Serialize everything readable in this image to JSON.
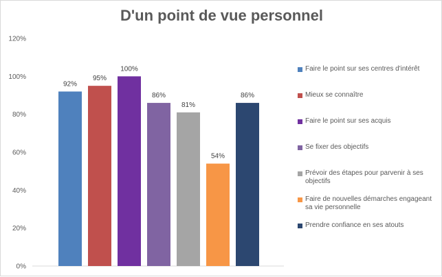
{
  "chart_data": {
    "type": "bar",
    "title": "D'un point de vue personnel",
    "ylim": [
      0,
      120
    ],
    "yticks": [
      {
        "value": 0,
        "label": "0%"
      },
      {
        "value": 20,
        "label": "20%"
      },
      {
        "value": 40,
        "label": "40%"
      },
      {
        "value": 60,
        "label": "60%"
      },
      {
        "value": 80,
        "label": "80%"
      },
      {
        "value": 100,
        "label": "100%"
      },
      {
        "value": 120,
        "label": "120%"
      }
    ],
    "grid": false,
    "legend_position": "right",
    "series": [
      {
        "name": "Faire le point sur ses centres d'intérêt",
        "value": 92,
        "label": "92%",
        "color": "#4F81BD"
      },
      {
        "name": "Mieux se connaître",
        "value": 95,
        "label": "95%",
        "color": "#C0504D"
      },
      {
        "name": "Faire le point sur ses acquis",
        "value": 100,
        "label": "100%",
        "color": "#7030A0"
      },
      {
        "name": "Se fixer des objectifs",
        "value": 86,
        "label": "86%",
        "color": "#8064A2"
      },
      {
        "name": "Prévoir des étapes pour parvenir à ses objectifs",
        "value": 81,
        "label": "81%",
        "color": "#A5A5A5"
      },
      {
        "name": "Faire de nouvelles démarches engageant sa vie personnelle",
        "value": 54,
        "label": "54%",
        "color": "#F79646"
      },
      {
        "name": "Prendre confiance en ses atouts",
        "value": 86,
        "label": "86%",
        "color": "#2C4770"
      }
    ]
  }
}
